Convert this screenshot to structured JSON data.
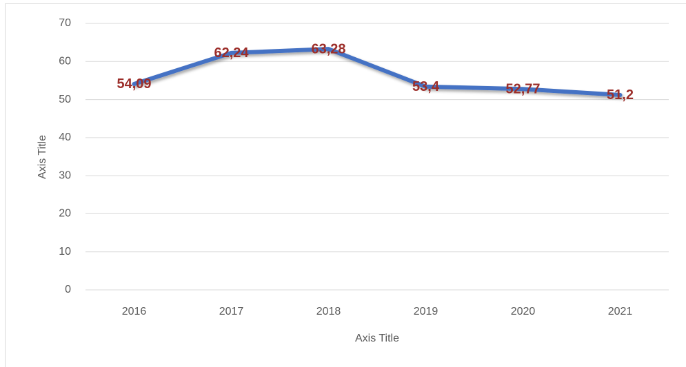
{
  "chart_data": {
    "type": "line",
    "categories": [
      "2016",
      "2017",
      "2018",
      "2019",
      "2020",
      "2021"
    ],
    "values": [
      54.09,
      62.24,
      63.28,
      53.4,
      52.77,
      51.2
    ],
    "value_labels": [
      "54,09",
      "62,24",
      "63,28",
      "53,4",
      "52,77",
      "51,2"
    ],
    "color": "#4472c4",
    "x_label": "Axis Title",
    "y_label": "Axis Title",
    "ylim": [
      0,
      70
    ],
    "yticks": [
      0,
      10,
      20,
      30,
      40,
      50,
      60,
      70
    ],
    "grid": true
  }
}
